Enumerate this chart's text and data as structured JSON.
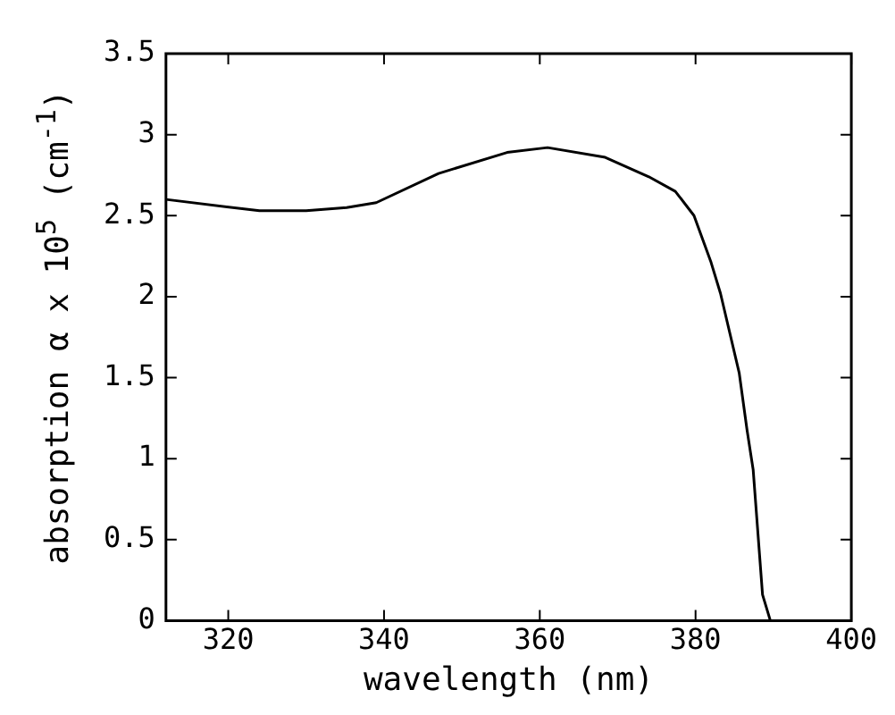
{
  "chart_data": {
    "type": "line",
    "xlabel": "wavelength (nm)",
    "ylabel": "absorption α x 10$^{5}$ (cm$^{-1}$)",
    "x": [
      312,
      324,
      330,
      335.2,
      339,
      347,
      355.8,
      361,
      368.4,
      374,
      377.4,
      379.8,
      382,
      383.2,
      385.6,
      386.6,
      387.4,
      388.6,
      389.6
    ],
    "series": [
      {
        "color": "#000000",
        "values": [
          2.6,
          2.53,
          2.53,
          2.55,
          2.58,
          2.76,
          2.89,
          2.92,
          2.86,
          2.74,
          2.65,
          2.5,
          2.21,
          2.02,
          1.53,
          1.18,
          0.93,
          0.16,
          0
        ]
      }
    ],
    "xlim": [
      312,
      400
    ],
    "xticks": [
      320,
      340,
      360,
      380,
      400
    ],
    "ylim": [
      0,
      3.5
    ],
    "yticks": [
      0,
      0.5,
      1,
      1.5,
      2,
      2.5,
      3,
      3.5
    ],
    "grid": false,
    "legend": false,
    "marker": "none",
    "line_style": "solid"
  }
}
